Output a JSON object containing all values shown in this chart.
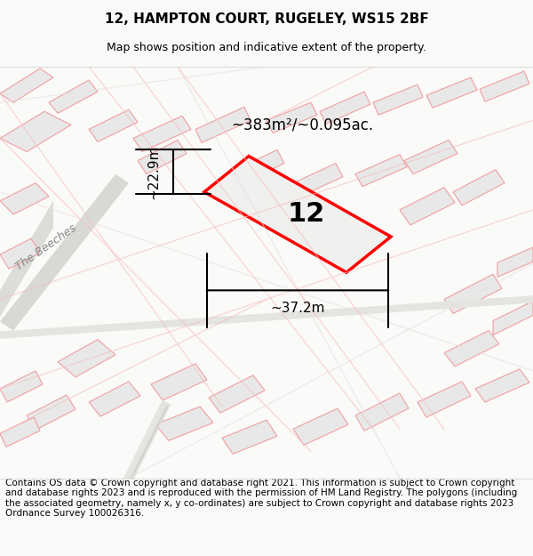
{
  "title": "12, HAMPTON COURT, RUGELEY, WS15 2BF",
  "subtitle": "Map shows position and indicative extent of the property.",
  "footer": "Contains OS data © Crown copyright and database right 2021. This information is subject to Crown copyright and database rights 2023 and is reproduced with the permission of HM Land Registry. The polygons (including the associated geometry, namely x, y co-ordinates) are subject to Crown copyright and database rights 2023 Ordnance Survey 100026316.",
  "area_label": "~383m²/~0.095ac.",
  "width_label": "~37.2m",
  "height_label": "~22.9m",
  "property_number": "12",
  "bg_color": "#f5f5f0",
  "map_bg": "#ffffff",
  "road_color": "#cccccc",
  "building_color": "#e8e8e8",
  "building_stroke": "#f0a0a0",
  "red_outline_color": "#ff0000",
  "title_fontsize": 11,
  "subtitle_fontsize": 9,
  "footer_fontsize": 7.5,
  "label_fontsize": 11
}
